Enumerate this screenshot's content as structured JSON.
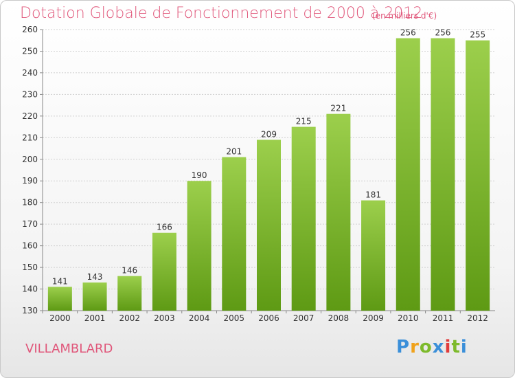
{
  "title": "Dotation Globale de Fonctionnement de 2000 à 2012",
  "subtitle": "(en milliers d'€)",
  "commune": "VILLAMBLARD",
  "logo": {
    "letters": [
      "P",
      "r",
      "o",
      "x",
      "i",
      "t",
      "i"
    ]
  },
  "colors": {
    "bar_light": "#9ccf4c",
    "bar_dark": "#5e9a14",
    "text_accent": "#e0567a"
  },
  "chart_data": {
    "type": "bar",
    "title": "Dotation Globale de Fonctionnement de 2000 à 2012",
    "subtitle": "(en milliers d'€)",
    "xlabel": "",
    "ylabel": "",
    "categories": [
      "2000",
      "2001",
      "2002",
      "2003",
      "2004",
      "2005",
      "2006",
      "2007",
      "2008",
      "2009",
      "2010",
      "2011",
      "2012"
    ],
    "values": [
      141,
      143,
      146,
      166,
      190,
      201,
      209,
      215,
      221,
      181,
      256,
      256,
      255
    ],
    "ylim": [
      130,
      260
    ],
    "yticks": [
      130,
      140,
      150,
      160,
      170,
      180,
      190,
      200,
      210,
      220,
      230,
      240,
      250,
      260
    ],
    "grid": true,
    "legend": "none"
  }
}
